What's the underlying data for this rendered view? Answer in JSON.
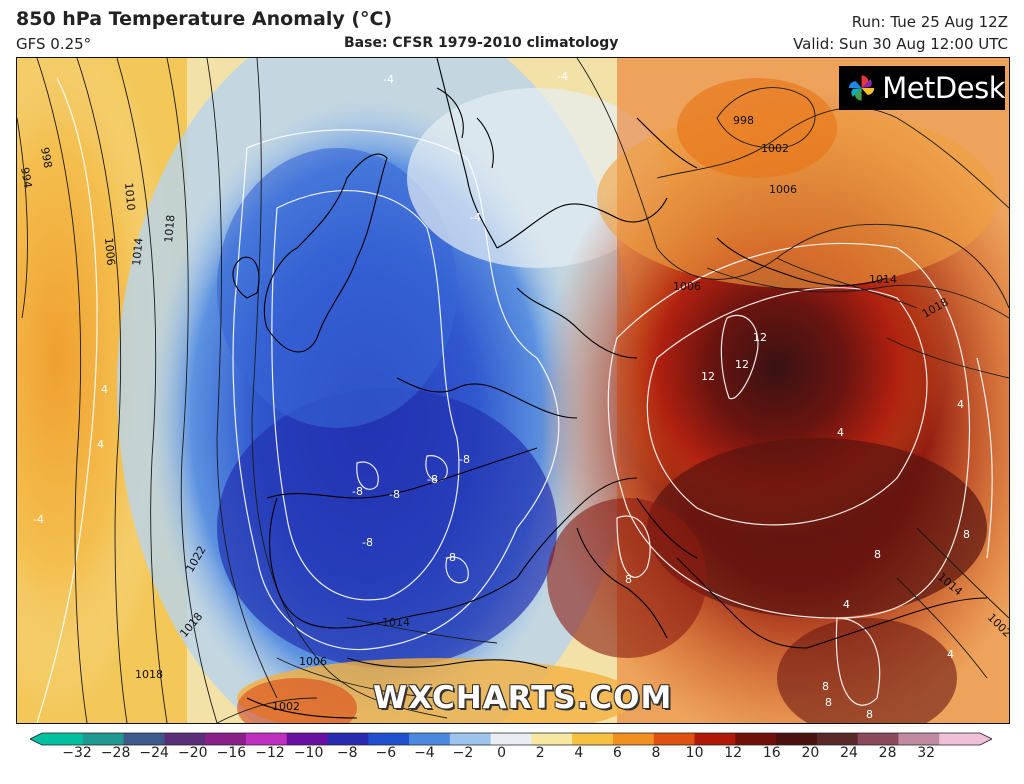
{
  "header": {
    "title": "850 hPa Temperature Anomaly (°C)",
    "model": "GFS 0.25°",
    "base": "Base: CFSR 1979-2010 climatology",
    "run": "Run: Tue 25 Aug 12Z",
    "valid": "Valid: Sun 30 Aug 12:00 UTC"
  },
  "logo": {
    "text": "MetDesk",
    "icon": "pinwheel-icon"
  },
  "watermark": "WXCHARTS.COM",
  "isobar_labels": [
    "998",
    "994",
    "1010",
    "1006",
    "1014",
    "1018",
    "1022",
    "1018",
    "1014",
    "1006",
    "1002",
    "998",
    "1002",
    "1006",
    "1006",
    "1014",
    "1018",
    "1014",
    "1018",
    "1002"
  ],
  "anomaly_labels": [
    "-4",
    "-4",
    "-4",
    "-8",
    "-8",
    "-8",
    "-8",
    "-8",
    "-8",
    "-4",
    "12",
    "12",
    "12",
    "8",
    "8",
    "8",
    "8",
    "8",
    "8",
    "4",
    "4",
    "4",
    "4",
    "4",
    "4"
  ],
  "colorbar": {
    "ticks": [
      "−32",
      "−28",
      "−24",
      "−20",
      "−16",
      "−12",
      "−10",
      "−8",
      "−6",
      "−4",
      "−2",
      "0",
      "2",
      "4",
      "6",
      "8",
      "10",
      "12",
      "16",
      "20",
      "24",
      "28",
      "32"
    ],
    "colors": [
      "#00c0a0",
      "#209a90",
      "#3d5a8a",
      "#5a2f7a",
      "#8a1f8a",
      "#c030c0",
      "#6a10a0",
      "#2a2ab0",
      "#2050d0",
      "#4c88e0",
      "#9cc4ec",
      "#e8eef4",
      "#f6e8a0",
      "#f6c040",
      "#f09020",
      "#e05010",
      "#b01808",
      "#701008",
      "#4a1010",
      "#5a2a2a",
      "#8a4a5a",
      "#c08aa0",
      "#f0c0d8"
    ]
  }
}
